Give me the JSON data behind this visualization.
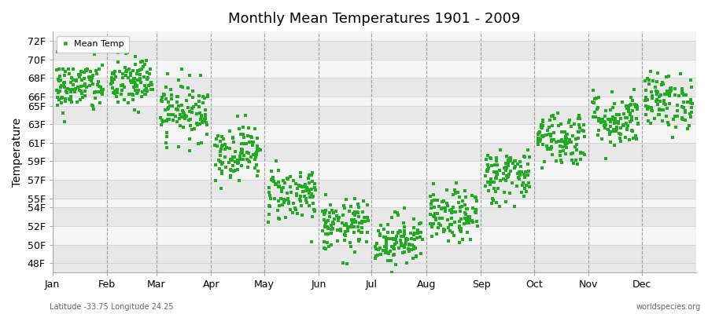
{
  "title": "Monthly Mean Temperatures 1901 - 2009",
  "ylabel": "Temperature",
  "xlabel_labels": [
    "Jan",
    "Feb",
    "Mar",
    "Apr",
    "May",
    "Jun",
    "Jul",
    "Aug",
    "Sep",
    "Oct",
    "Nov",
    "Dec"
  ],
  "yticks": [
    48,
    50,
    52,
    54,
    55,
    57,
    59,
    61,
    63,
    65,
    66,
    68,
    70,
    72
  ],
  "ytick_labels": [
    "48F",
    "50F",
    "52F",
    "54F",
    "55F",
    "57F",
    "59F",
    "61F",
    "63F",
    "65F",
    "66F",
    "68F",
    "70F",
    "72F"
  ],
  "ylim": [
    47.0,
    73.0
  ],
  "xlim": [
    0,
    365
  ],
  "marker_color": "#22aa22",
  "marker": "s",
  "marker_size": 2.5,
  "legend_label": "Mean Temp",
  "subtitle": "Latitude -33.75 Longitude 24.25",
  "watermark": "worldspecies.org",
  "bg_color": "#ffffff",
  "band_colors": [
    "#e8e8e8",
    "#f5f5f5"
  ],
  "grid_color": "#cccccc",
  "vline_color": "#888888",
  "monthly_means": [
    67.0,
    67.5,
    64.5,
    60.0,
    55.5,
    52.0,
    50.5,
    53.0,
    57.5,
    61.5,
    63.5,
    65.5
  ],
  "monthly_stds": [
    1.4,
    1.5,
    1.6,
    1.5,
    1.5,
    1.4,
    1.4,
    1.4,
    1.5,
    1.5,
    1.5,
    1.5
  ],
  "n_years": 109,
  "month_days": [
    31,
    28,
    31,
    30,
    31,
    30,
    31,
    31,
    30,
    31,
    30,
    31
  ]
}
